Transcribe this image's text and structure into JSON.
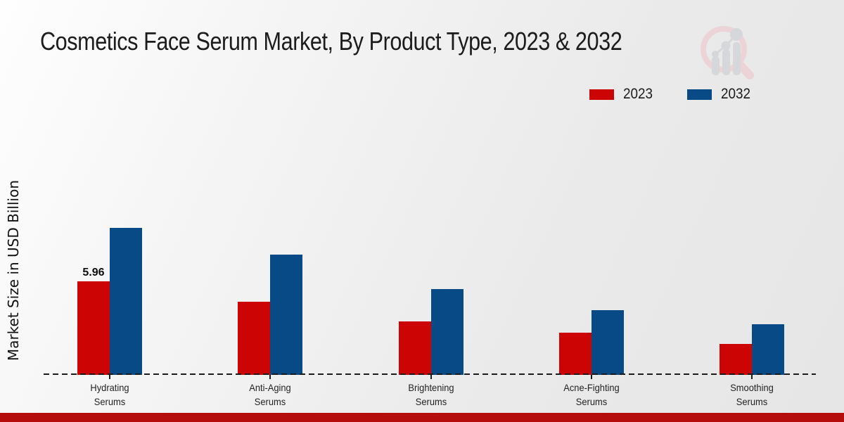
{
  "title": "Cosmetics Face Serum Market, By Product Type, 2023 & 2032",
  "ylabel": "Market Size in USD Billion",
  "legend": [
    {
      "label": "2023",
      "color": "#cc0404"
    },
    {
      "label": "2032",
      "color": "#084a85"
    }
  ],
  "watermark_icon": "magnifier-bar-chart-logo",
  "footer": {
    "strip_color": "#b50c0c"
  },
  "colors": {
    "series_2023": "#cc0404",
    "series_2032": "#084a85",
    "logo_pink": "#ecd3d8",
    "logo_gray": "#d5d7da",
    "axis": "#1b1b1b"
  },
  "chart_data": {
    "type": "bar",
    "title": "Cosmetics Face Serum Market, By Product Type, 2023 & 2032",
    "xlabel": "",
    "ylabel": "Market Size in USD Billion",
    "categories": [
      "Hydrating Serums",
      "Anti-Aging Serums",
      "Brightening Serums",
      "Acne-Fighting Serums",
      "Smoothing Serums"
    ],
    "series": [
      {
        "name": "2023",
        "color": "#cc0404",
        "values": [
          5.96,
          4.66,
          3.41,
          2.69,
          1.97
        ]
      },
      {
        "name": "2032",
        "color": "#084a85",
        "values": [
          9.37,
          7.66,
          5.47,
          4.12,
          3.23
        ]
      }
    ],
    "data_labels": [
      {
        "series_index": 0,
        "category_index": 0,
        "text": "5.96"
      }
    ],
    "ylim": [
      0,
      10
    ],
    "grid": false,
    "y_axis_ticks_visible": false,
    "baseline_style": "dashed",
    "legend_position": "top-right"
  }
}
